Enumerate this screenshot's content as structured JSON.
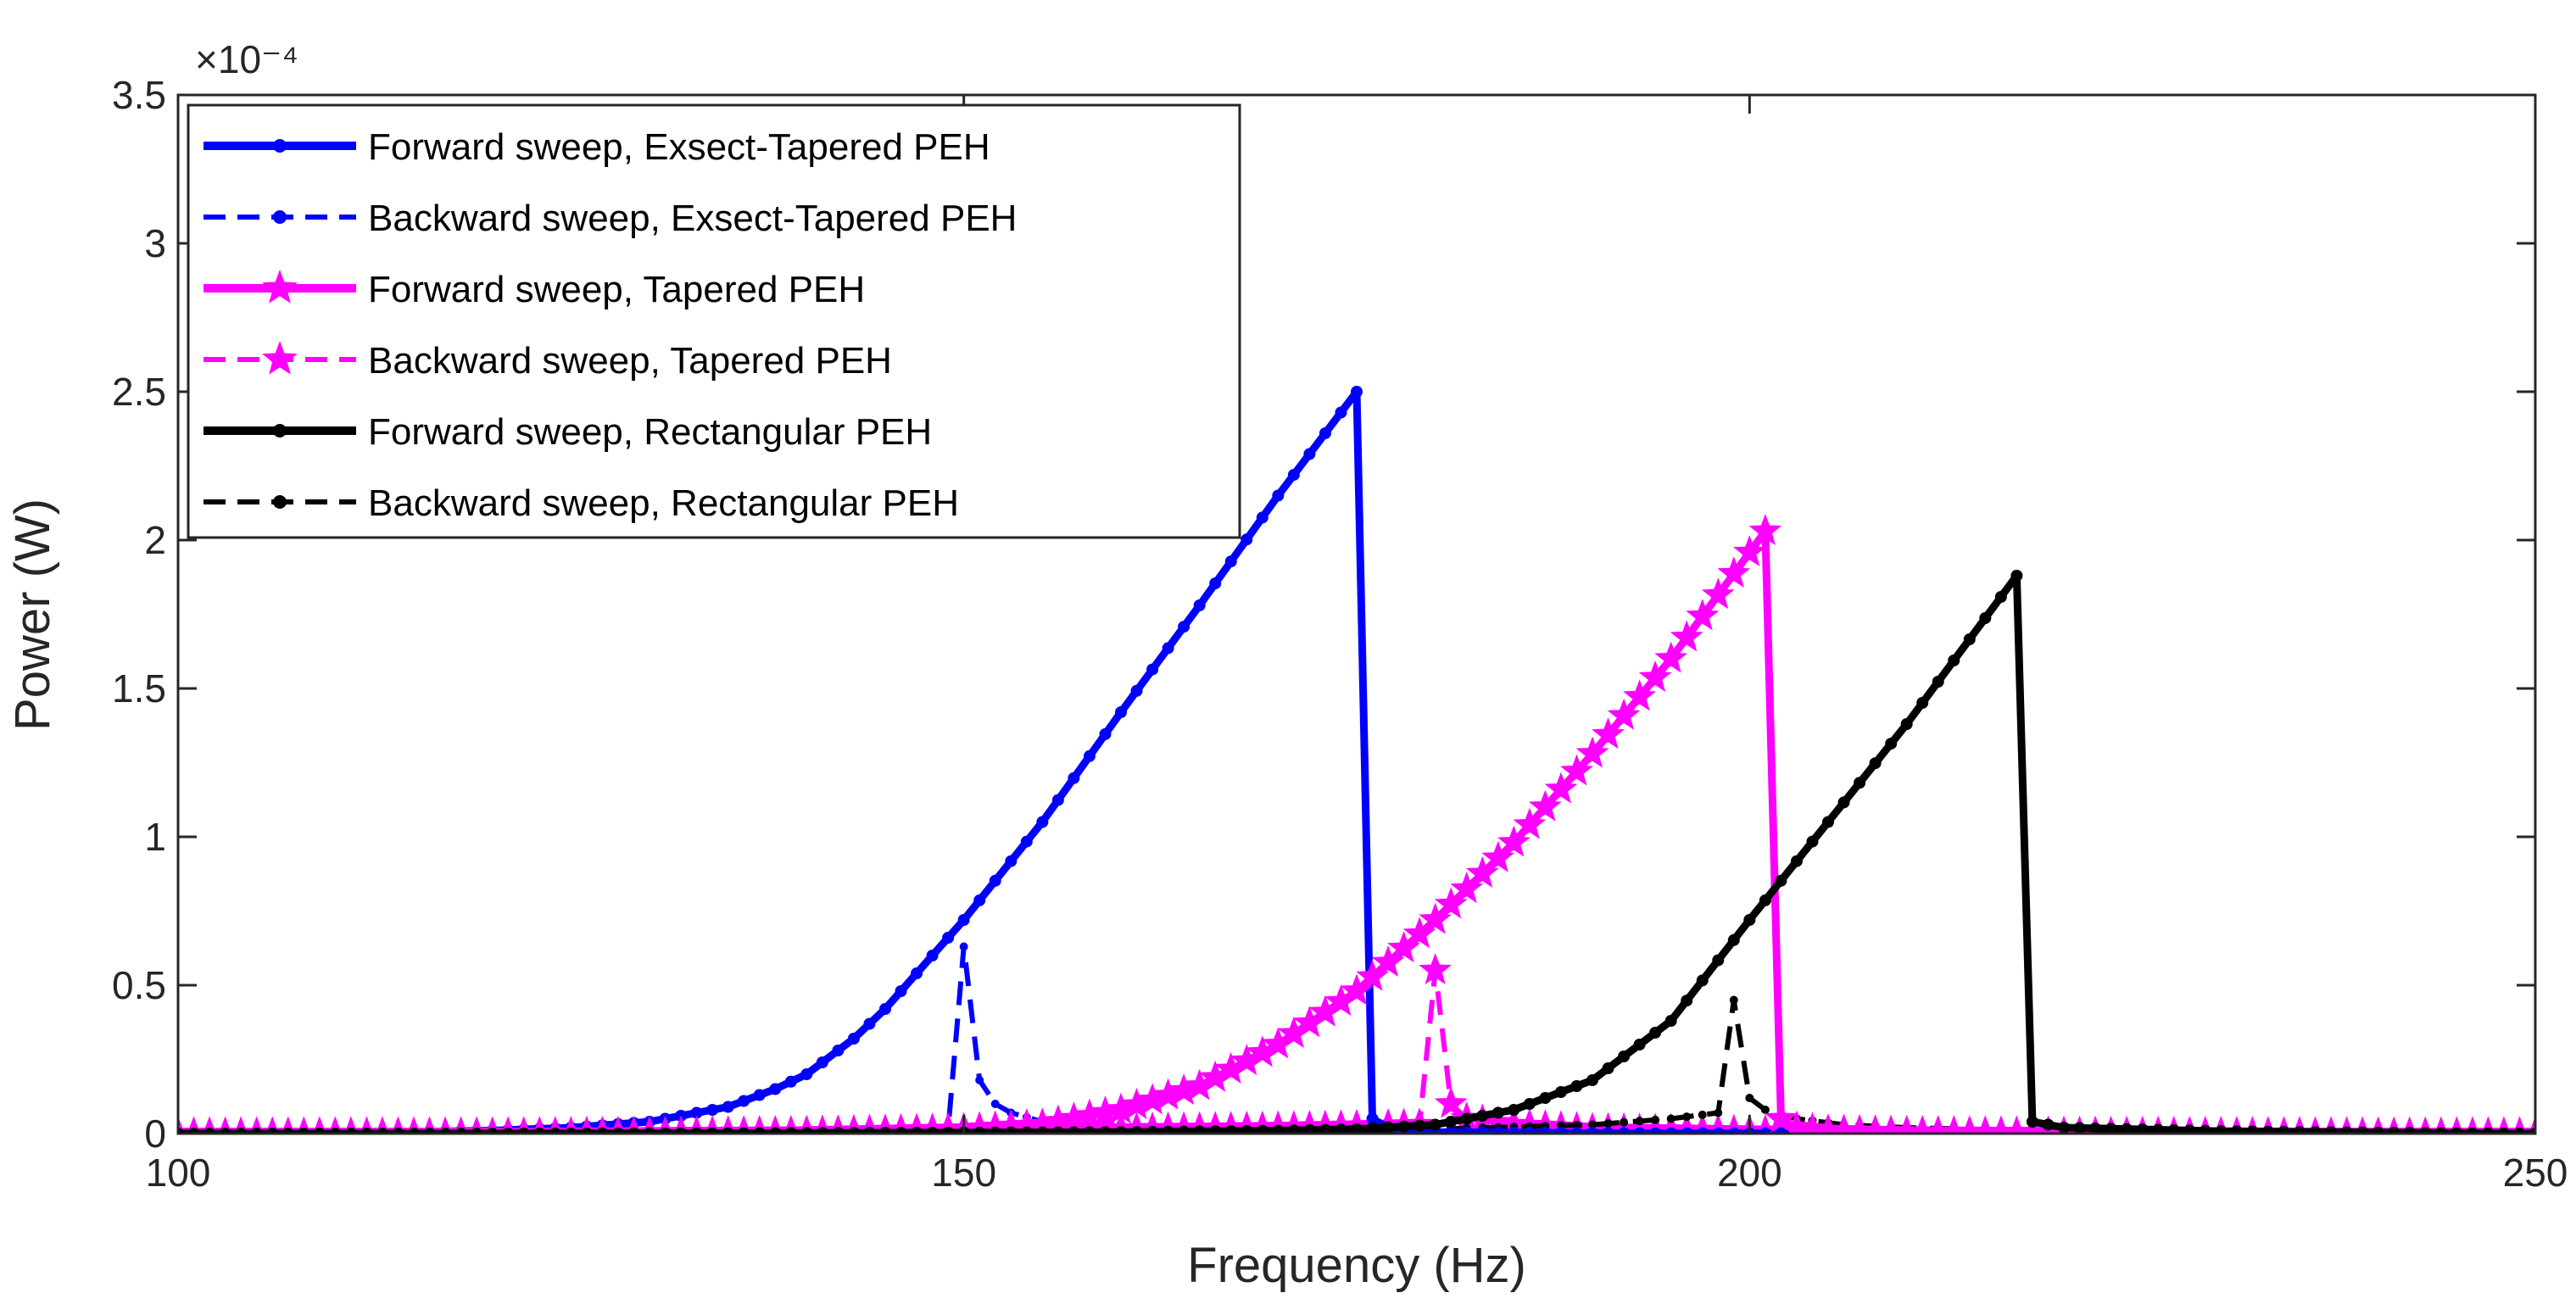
{
  "chart_data": {
    "type": "line",
    "title": "",
    "xlabel": "Frequency (Hz)",
    "ylabel": "Power (W)",
    "exponent_label": "×10⁻⁴",
    "xlim": [
      100,
      250
    ],
    "ylim": [
      0,
      3.5
    ],
    "xticks": [
      100,
      150,
      200,
      250
    ],
    "xtick_labels": [
      "100",
      "150",
      "200",
      "250"
    ],
    "yticks": [
      0,
      0.5,
      1,
      1.5,
      2,
      2.5,
      3,
      3.5
    ],
    "ytick_labels": [
      "0",
      "0.5",
      "1",
      "1.5",
      "2",
      "2.5",
      "3",
      "3.5"
    ],
    "legend_position": "top-left",
    "y_unit_scale": "1e-4",
    "series": [
      {
        "name": "Forward sweep, Exsect-Tapered PEH",
        "color": "#0000ff",
        "style": "solid",
        "marker": "dot",
        "x": [
          100,
          110,
          120,
          125,
          130,
          135,
          138,
          140,
          143,
          145,
          148,
          150,
          155,
          160,
          165,
          170,
          175,
          176,
          177,
          180,
          190,
          200,
          210,
          220,
          230,
          240,
          250
        ],
        "y": [
          0,
          0.002,
          0.01,
          0.02,
          0.04,
          0.09,
          0.15,
          0.2,
          0.32,
          0.42,
          0.6,
          0.72,
          1.05,
          1.42,
          1.78,
          2.15,
          2.5,
          0.05,
          0.02,
          0.005,
          0.002,
          0.001,
          0,
          0,
          0,
          0,
          0
        ]
      },
      {
        "name": "Backward sweep, Exsect-Tapered PEH",
        "color": "#0000ff",
        "style": "dashed",
        "marker": "dot",
        "x": [
          100,
          110,
          120,
          130,
          140,
          145,
          149,
          150,
          151,
          152,
          153,
          155,
          160,
          170,
          180,
          190,
          200,
          210,
          220,
          230,
          240,
          250
        ],
        "y": [
          0,
          0,
          0.002,
          0.005,
          0.008,
          0.01,
          0.012,
          0.63,
          0.18,
          0.1,
          0.07,
          0.04,
          0.02,
          0.01,
          0.005,
          0.002,
          0.001,
          0,
          0,
          0,
          0,
          0
        ]
      },
      {
        "name": "Forward sweep, Tapered PEH",
        "color": "#ff00ff",
        "style": "solid",
        "marker": "star",
        "x": [
          100,
          110,
          120,
          130,
          140,
          150,
          155,
          160,
          165,
          170,
          175,
          180,
          185,
          190,
          195,
          201,
          202,
          203,
          205,
          210,
          220,
          230,
          240,
          250
        ],
        "y": [
          0,
          0,
          0,
          0.002,
          0.005,
          0.015,
          0.03,
          0.08,
          0.16,
          0.3,
          0.48,
          0.72,
          0.98,
          1.28,
          1.6,
          2.03,
          0.05,
          0.02,
          0.01,
          0.005,
          0.002,
          0.001,
          0,
          0
        ]
      },
      {
        "name": "Backward sweep, Tapered PEH",
        "color": "#ff00ff",
        "style": "dashed",
        "marker": "star",
        "x": [
          100,
          110,
          120,
          130,
          140,
          150,
          160,
          170,
          175,
          179,
          180,
          181,
          182,
          185,
          190,
          200,
          210,
          220,
          230,
          240,
          250
        ],
        "y": [
          0,
          0,
          0,
          0.002,
          0.005,
          0.01,
          0.015,
          0.02,
          0.025,
          0.03,
          0.55,
          0.1,
          0.05,
          0.03,
          0.015,
          0.008,
          0.004,
          0.002,
          0.001,
          0,
          0
        ]
      },
      {
        "name": "Forward sweep, Rectangular PEH",
        "color": "#000000",
        "style": "solid",
        "marker": "dot",
        "x": [
          100,
          120,
          140,
          160,
          170,
          175,
          180,
          185,
          190,
          195,
          200,
          205,
          210,
          217,
          218,
          220,
          230,
          240,
          250
        ],
        "y": [
          0,
          0,
          0.002,
          0.005,
          0.01,
          0.015,
          0.03,
          0.08,
          0.18,
          0.38,
          0.72,
          1.05,
          1.38,
          1.88,
          0.04,
          0.02,
          0.008,
          0.003,
          0
        ]
      },
      {
        "name": "Backward sweep, Rectangular PEH",
        "color": "#000000",
        "style": "dashed",
        "marker": "dot",
        "x": [
          100,
          120,
          140,
          160,
          170,
          180,
          190,
          195,
          198,
          199,
          200,
          201,
          203,
          206,
          210,
          220,
          230,
          240,
          250
        ],
        "y": [
          0,
          0,
          0.002,
          0.005,
          0.008,
          0.015,
          0.03,
          0.05,
          0.07,
          0.45,
          0.12,
          0.08,
          0.05,
          0.03,
          0.02,
          0.008,
          0.004,
          0.001,
          0
        ]
      }
    ]
  }
}
